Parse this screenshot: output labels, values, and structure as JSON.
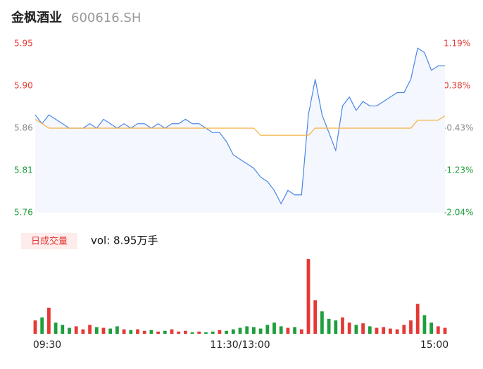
{
  "chart_data": {
    "type": "line",
    "title": "金枫酒业",
    "subtitle": "600616.SH",
    "volume_label": "日成交量",
    "volume_total": "vol: 8.95万手",
    "xlim": [
      0,
      240
    ],
    "xticks": [
      {
        "value": 0,
        "label": "09:30"
      },
      {
        "value": 120,
        "label": "11:30/13:00"
      },
      {
        "value": 240,
        "label": "15:00"
      }
    ],
    "ylim": [
      5.76,
      5.95
    ],
    "yticks": [
      {
        "value": 5.76,
        "label": "5.76"
      },
      {
        "value": 5.8075,
        "label": "5.81"
      },
      {
        "value": 5.855,
        "label": "5.86"
      },
      {
        "value": 5.9025,
        "label": "5.90"
      },
      {
        "value": 5.95,
        "label": "5.95"
      }
    ],
    "y2lim": [
      -2.04,
      1.19
    ],
    "y2ticks": [
      {
        "value": -2.04,
        "label": "-2.04%"
      },
      {
        "value": -1.2325,
        "label": "-1.23%"
      },
      {
        "value": -0.425,
        "label": "-0.43%"
      },
      {
        "value": 0.3825,
        "label": "0.38%"
      },
      {
        "value": 1.19,
        "label": "1.19%"
      }
    ],
    "x": [
      0,
      4,
      8,
      12,
      16,
      20,
      24,
      28,
      32,
      36,
      40,
      44,
      48,
      52,
      56,
      60,
      64,
      68,
      72,
      76,
      80,
      84,
      88,
      92,
      96,
      100,
      104,
      108,
      112,
      116,
      120,
      124,
      128,
      132,
      136,
      140,
      144,
      148,
      152,
      156,
      160,
      164,
      168,
      172,
      176,
      180,
      184,
      188,
      192,
      196,
      200,
      204,
      208,
      212,
      216,
      220,
      224,
      228,
      232,
      236,
      240
    ],
    "series": [
      {
        "name": "price",
        "color": "#4a86e8",
        "values": [
          5.87,
          5.86,
          5.87,
          5.865,
          5.86,
          5.855,
          5.855,
          5.855,
          5.86,
          5.855,
          5.865,
          5.86,
          5.855,
          5.86,
          5.855,
          5.86,
          5.86,
          5.855,
          5.86,
          5.855,
          5.86,
          5.86,
          5.865,
          5.86,
          5.86,
          5.855,
          5.85,
          5.85,
          5.84,
          5.825,
          5.82,
          5.815,
          5.81,
          5.8,
          5.795,
          5.785,
          5.77,
          5.785,
          5.78,
          5.78,
          5.87,
          5.91,
          5.87,
          5.85,
          5.83,
          5.88,
          5.89,
          5.875,
          5.885,
          5.88,
          5.88,
          5.885,
          5.89,
          5.895,
          5.895,
          5.91,
          5.945,
          5.94,
          5.92,
          5.925,
          5.925
        ]
      },
      {
        "name": "average",
        "color": "#f5b041",
        "values": [
          5.865,
          5.86,
          5.855,
          5.855,
          5.855,
          5.855,
          5.855,
          5.855,
          5.855,
          5.855,
          5.855,
          5.855,
          5.855,
          5.855,
          5.855,
          5.855,
          5.855,
          5.855,
          5.855,
          5.855,
          5.855,
          5.855,
          5.855,
          5.855,
          5.855,
          5.855,
          5.855,
          5.855,
          5.855,
          5.855,
          5.855,
          5.855,
          5.855,
          5.847,
          5.847,
          5.847,
          5.847,
          5.847,
          5.847,
          5.847,
          5.847,
          5.855,
          5.855,
          5.855,
          5.855,
          5.855,
          5.855,
          5.855,
          5.855,
          5.855,
          5.855,
          5.855,
          5.855,
          5.855,
          5.855,
          5.855,
          5.864,
          5.864,
          5.864,
          5.864,
          5.869
        ]
      }
    ],
    "volume": [
      18,
      22,
      35,
      15,
      12,
      8,
      10,
      6,
      12,
      9,
      8,
      7,
      10,
      6,
      5,
      6,
      4,
      5,
      3,
      4,
      6,
      3,
      4,
      2,
      3,
      2,
      3,
      5,
      4,
      6,
      8,
      10,
      9,
      7,
      12,
      15,
      10,
      8,
      9,
      6,
      100,
      45,
      30,
      20,
      18,
      22,
      15,
      12,
      14,
      10,
      8,
      9,
      7,
      6,
      12,
      18,
      40,
      25,
      15,
      10,
      8
    ],
    "up_color": "#e53935",
    "down_color": "#1e9e3c"
  }
}
